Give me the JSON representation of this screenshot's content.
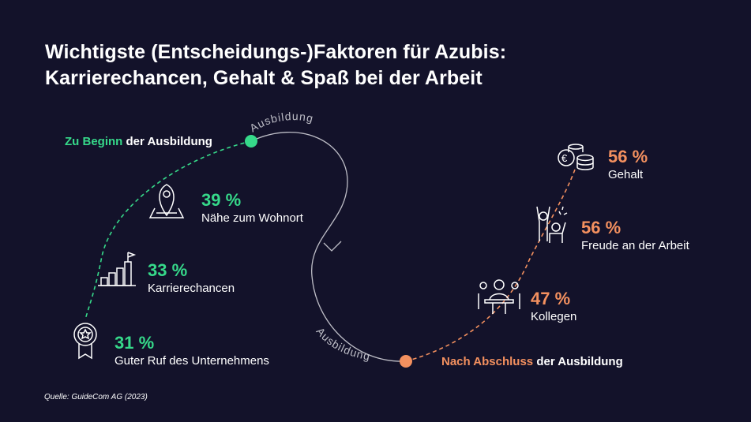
{
  "title": {
    "line1": "Wichtigste (Entscheidungs-)Faktoren für Azubis:",
    "line2": "Karrierechancen, Gehalt & Spaß bei der Arbeit"
  },
  "start_stage": {
    "highlight": "Zu Beginn",
    "rest": " der Ausbildung"
  },
  "end_stage": {
    "highlight": "Nach Abschluss",
    "rest": " der Ausbildung"
  },
  "path_labels": {
    "top": "Ausbildung",
    "bottom": "Ausbildung"
  },
  "start_factors": [
    {
      "percent": "39 %",
      "label": "Nähe zum Wohnort",
      "icon": "location-pin-map-icon"
    },
    {
      "percent": "33 %",
      "label": "Karrierechancen",
      "icon": "career-steps-flag-icon"
    },
    {
      "percent": "31 %",
      "label": "Guter Ruf des Unternehmens",
      "icon": "award-badge-star-icon"
    }
  ],
  "end_factors": [
    {
      "percent": "56 %",
      "label": "Gehalt",
      "icon": "euro-coins-icon"
    },
    {
      "percent": "56 %",
      "label": "Freude an der Arbeit",
      "icon": "cheering-people-icon"
    },
    {
      "percent": "47 %",
      "label": "Kollegen",
      "icon": "colleagues-table-icon"
    }
  ],
  "colors": {
    "background": "#13122a",
    "start_accent": "#36d98a",
    "end_accent": "#f3905f",
    "path": "#bdbdc6"
  },
  "source": "Quelle: GuideCom AG (2023)"
}
